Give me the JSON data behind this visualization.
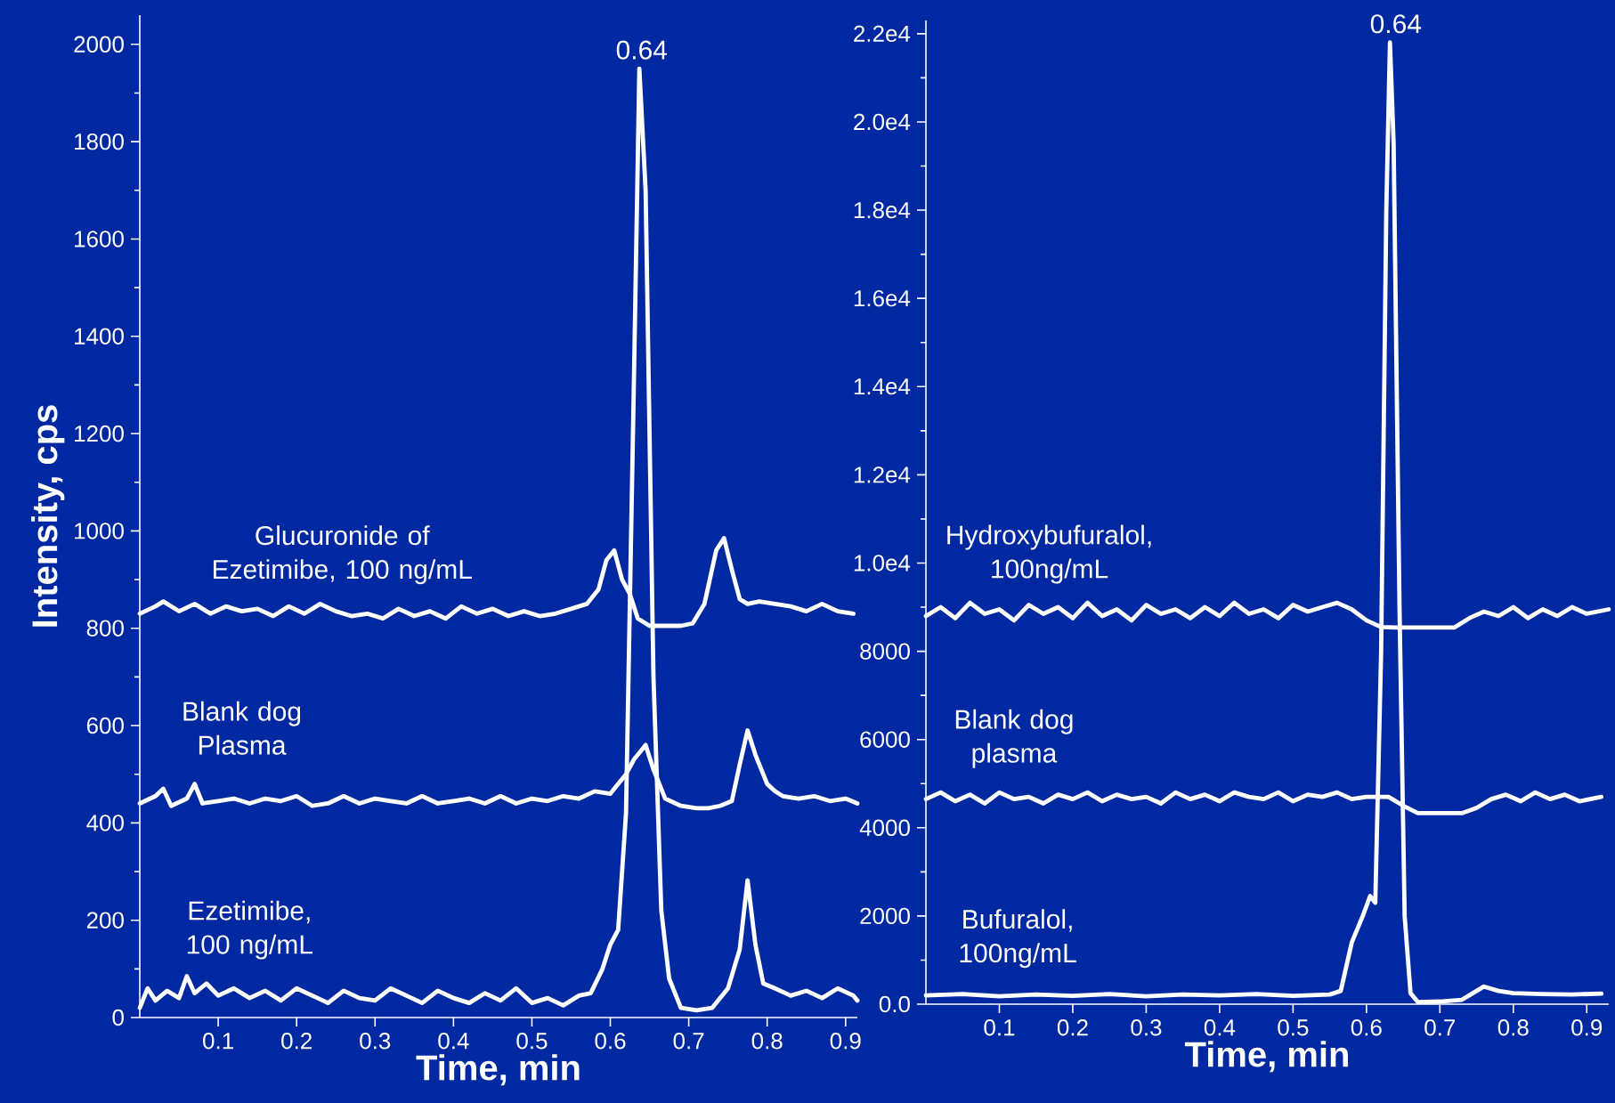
{
  "chart_data": [
    {
      "type": "line",
      "xlabel": "Time, min",
      "ylabel": "Intensity, cps",
      "xlim": [
        0,
        0.915
      ],
      "ylim": [
        0,
        2060
      ],
      "xticks": [
        0.1,
        0.2,
        0.3,
        0.4,
        0.5,
        0.6,
        0.7,
        0.8,
        0.9
      ],
      "yticks": [
        0,
        200,
        400,
        600,
        800,
        1000,
        1200,
        1400,
        1600,
        1800,
        2000
      ],
      "annotations": [
        {
          "text": "0.64",
          "x": 0.64,
          "y": 1950
        }
      ],
      "series": [
        {
          "name": "Glucuronide of Ezetimibe, 100 ng/mL",
          "color": "#ffffff",
          "x": [
            0,
            0.02,
            0.03,
            0.05,
            0.07,
            0.09,
            0.11,
            0.13,
            0.15,
            0.17,
            0.19,
            0.21,
            0.23,
            0.25,
            0.27,
            0.29,
            0.31,
            0.33,
            0.35,
            0.37,
            0.39,
            0.41,
            0.43,
            0.45,
            0.47,
            0.49,
            0.51,
            0.53,
            0.55,
            0.57,
            0.585,
            0.595,
            0.605,
            0.615,
            0.625,
            0.635,
            0.65,
            0.67,
            0.69,
            0.705,
            0.72,
            0.735,
            0.745,
            0.755,
            0.765,
            0.775,
            0.79,
            0.81,
            0.83,
            0.85,
            0.87,
            0.89,
            0.91
          ],
          "values": [
            830,
            845,
            855,
            835,
            850,
            830,
            845,
            835,
            840,
            825,
            845,
            830,
            850,
            835,
            825,
            830,
            820,
            840,
            825,
            835,
            820,
            845,
            830,
            840,
            825,
            835,
            825,
            830,
            840,
            850,
            880,
            940,
            960,
            900,
            870,
            820,
            805,
            805,
            805,
            810,
            850,
            960,
            985,
            920,
            860,
            850,
            855,
            850,
            845,
            835,
            850,
            835,
            830
          ]
        },
        {
          "name": "Blank dog Plasma",
          "color": "#ffffff",
          "x": [
            0,
            0.02,
            0.03,
            0.04,
            0.06,
            0.07,
            0.08,
            0.1,
            0.12,
            0.14,
            0.16,
            0.18,
            0.2,
            0.22,
            0.24,
            0.26,
            0.28,
            0.3,
            0.32,
            0.34,
            0.36,
            0.38,
            0.4,
            0.42,
            0.44,
            0.46,
            0.48,
            0.5,
            0.52,
            0.54,
            0.56,
            0.58,
            0.6,
            0.62,
            0.63,
            0.645,
            0.655,
            0.67,
            0.69,
            0.71,
            0.725,
            0.74,
            0.755,
            0.765,
            0.775,
            0.785,
            0.8,
            0.81,
            0.82,
            0.84,
            0.86,
            0.88,
            0.9,
            0.915
          ],
          "values": [
            440,
            455,
            470,
            435,
            450,
            480,
            440,
            445,
            450,
            440,
            450,
            445,
            455,
            435,
            440,
            455,
            440,
            450,
            445,
            440,
            455,
            440,
            445,
            450,
            440,
            455,
            440,
            450,
            445,
            455,
            450,
            465,
            460,
            500,
            530,
            560,
            510,
            450,
            435,
            430,
            430,
            435,
            445,
            520,
            590,
            540,
            480,
            465,
            455,
            450,
            455,
            445,
            450,
            440
          ]
        },
        {
          "name": "Ezetimibe, 100 ng/mL",
          "color": "#ffffff",
          "x": [
            0,
            0.01,
            0.02,
            0.035,
            0.05,
            0.06,
            0.07,
            0.085,
            0.1,
            0.12,
            0.14,
            0.16,
            0.18,
            0.2,
            0.22,
            0.24,
            0.26,
            0.28,
            0.3,
            0.32,
            0.34,
            0.36,
            0.38,
            0.4,
            0.42,
            0.44,
            0.46,
            0.48,
            0.5,
            0.52,
            0.54,
            0.56,
            0.575,
            0.59,
            0.6,
            0.61,
            0.62,
            0.63,
            0.637,
            0.645,
            0.655,
            0.665,
            0.675,
            0.69,
            0.71,
            0.73,
            0.75,
            0.765,
            0.775,
            0.785,
            0.795,
            0.81,
            0.83,
            0.85,
            0.87,
            0.89,
            0.91,
            0.915
          ],
          "values": [
            20,
            60,
            35,
            55,
            40,
            85,
            50,
            70,
            45,
            60,
            40,
            55,
            35,
            60,
            45,
            30,
            55,
            40,
            35,
            60,
            45,
            30,
            55,
            40,
            30,
            50,
            35,
            60,
            30,
            40,
            25,
            45,
            50,
            100,
            150,
            180,
            420,
            1300,
            1950,
            1700,
            700,
            220,
            80,
            20,
            15,
            20,
            60,
            140,
            282,
            150,
            70,
            60,
            45,
            55,
            40,
            60,
            45,
            35
          ]
        }
      ]
    },
    {
      "type": "line",
      "xlabel": "Time, min",
      "xlim": [
        0,
        0.93
      ],
      "ylim": [
        0,
        22300
      ],
      "xticks": [
        0.1,
        0.2,
        0.3,
        0.4,
        0.5,
        0.6,
        0.7,
        0.8,
        0.9
      ],
      "yticks": [
        {
          "value": 0,
          "label": "0.0"
        },
        2000,
        4000,
        6000,
        8000,
        {
          "value": 10000,
          "label": "1.0e4"
        },
        {
          "value": 12000,
          "label": "1.2e4"
        },
        {
          "value": 14000,
          "label": "1.4e4"
        },
        {
          "value": 16000,
          "label": "1.6e4"
        },
        {
          "value": 18000,
          "label": "1.8e4"
        },
        {
          "value": 20000,
          "label": "2.0e4"
        },
        {
          "value": 22000,
          "label": "2.2e4"
        }
      ],
      "annotations": [
        {
          "text": "0.64",
          "x": 0.64,
          "y": 21800
        }
      ],
      "series": [
        {
          "name": "Hydroxybufuralol, 100ng/mL",
          "color": "#ffffff",
          "x": [
            0,
            0.02,
            0.04,
            0.06,
            0.08,
            0.1,
            0.12,
            0.14,
            0.16,
            0.18,
            0.2,
            0.22,
            0.24,
            0.26,
            0.28,
            0.3,
            0.32,
            0.34,
            0.36,
            0.38,
            0.4,
            0.42,
            0.44,
            0.46,
            0.48,
            0.5,
            0.52,
            0.54,
            0.56,
            0.58,
            0.6,
            0.62,
            0.64,
            0.68,
            0.72,
            0.74,
            0.76,
            0.78,
            0.8,
            0.82,
            0.84,
            0.86,
            0.88,
            0.9,
            0.93
          ],
          "values": [
            8800,
            9000,
            8750,
            9100,
            8850,
            8950,
            8700,
            9050,
            8850,
            9000,
            8750,
            9100,
            8800,
            8950,
            8700,
            9050,
            8850,
            8950,
            8750,
            9000,
            8800,
            9100,
            8850,
            8950,
            8750,
            9050,
            8900,
            9000,
            9100,
            8950,
            8700,
            8550,
            8540,
            8540,
            8540,
            8750,
            8900,
            8800,
            9000,
            8750,
            8950,
            8800,
            9000,
            8850,
            8950
          ]
        },
        {
          "name": "Blank dog plasma",
          "color": "#ffffff",
          "x": [
            0,
            0.02,
            0.04,
            0.06,
            0.08,
            0.1,
            0.12,
            0.14,
            0.16,
            0.18,
            0.2,
            0.22,
            0.24,
            0.26,
            0.28,
            0.3,
            0.32,
            0.34,
            0.36,
            0.38,
            0.4,
            0.42,
            0.44,
            0.46,
            0.48,
            0.5,
            0.52,
            0.54,
            0.56,
            0.58,
            0.6,
            0.63,
            0.65,
            0.67,
            0.73,
            0.75,
            0.77,
            0.79,
            0.81,
            0.83,
            0.85,
            0.87,
            0.89,
            0.92
          ],
          "values": [
            4650,
            4800,
            4600,
            4750,
            4550,
            4800,
            4650,
            4700,
            4550,
            4750,
            4650,
            4800,
            4600,
            4750,
            4650,
            4700,
            4550,
            4800,
            4650,
            4750,
            4600,
            4800,
            4700,
            4650,
            4800,
            4600,
            4750,
            4700,
            4800,
            4650,
            4700,
            4700,
            4500,
            4330,
            4330,
            4450,
            4650,
            4750,
            4600,
            4800,
            4650,
            4750,
            4600,
            4700
          ]
        },
        {
          "name": "Bufuralol, 100ng/mL",
          "color": "#ffffff",
          "x": [
            0,
            0.05,
            0.1,
            0.15,
            0.2,
            0.25,
            0.3,
            0.35,
            0.4,
            0.45,
            0.5,
            0.55,
            0.565,
            0.58,
            0.595,
            0.605,
            0.612,
            0.62,
            0.627,
            0.632,
            0.637,
            0.645,
            0.652,
            0.66,
            0.67,
            0.7,
            0.73,
            0.76,
            0.78,
            0.8,
            0.84,
            0.88,
            0.92
          ],
          "values": [
            200,
            230,
            180,
            220,
            190,
            230,
            180,
            220,
            200,
            230,
            190,
            220,
            300,
            1400,
            2000,
            2450,
            2300,
            8000,
            18000,
            21800,
            19500,
            9000,
            2000,
            250,
            50,
            60,
            100,
            400,
            300,
            250,
            230,
            220,
            240
          ]
        }
      ]
    }
  ]
}
